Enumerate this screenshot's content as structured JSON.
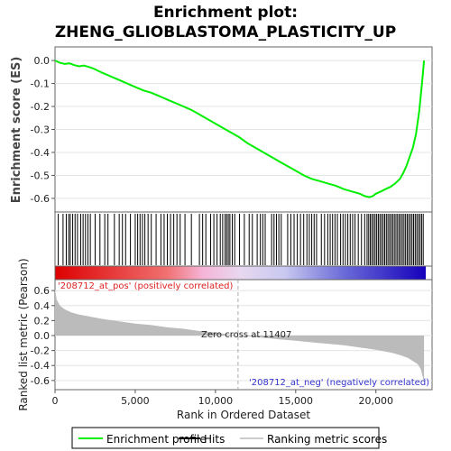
{
  "chart_data": {
    "type": "line",
    "title": "Enrichment plot:",
    "subtitle": "ZHENG_GLIOBLASTOMA_PLASTICITY_UP",
    "top_panel": {
      "ylabel": "Enrichment score (ES)",
      "ylim": [
        -0.62,
        0.02
      ],
      "yticks": [
        "0.0",
        "-0.1",
        "-0.2",
        "-0.3",
        "-0.4",
        "-0.5",
        "-0.6"
      ],
      "ytick_values": [
        0.0,
        -0.1,
        -0.2,
        -0.3,
        -0.4,
        -0.5,
        -0.6
      ],
      "series": [
        {
          "name": "Enrichment profile",
          "color": "#00ff00",
          "x": [
            0,
            300,
            600,
            900,
            1200,
            1500,
            1800,
            2100,
            2400,
            2700,
            3000,
            3500,
            4000,
            4500,
            5000,
            5500,
            6000,
            6500,
            7000,
            7500,
            8000,
            8500,
            9000,
            9500,
            10000,
            10500,
            11000,
            11500,
            12000,
            12500,
            13000,
            13500,
            14000,
            14500,
            15000,
            15500,
            16000,
            16500,
            17000,
            17500,
            18000,
            18500,
            19000,
            19300,
            19600,
            19800,
            20000,
            20300,
            20600,
            20900,
            21200,
            21500,
            21700,
            21900,
            22100,
            22300,
            22500,
            22700,
            22900,
            23000
          ],
          "y": [
            0.0,
            -0.01,
            -0.015,
            -0.012,
            -0.02,
            -0.025,
            -0.022,
            -0.028,
            -0.035,
            -0.045,
            -0.055,
            -0.07,
            -0.085,
            -0.1,
            -0.115,
            -0.13,
            -0.14,
            -0.155,
            -0.17,
            -0.185,
            -0.2,
            -0.215,
            -0.235,
            -0.255,
            -0.275,
            -0.295,
            -0.315,
            -0.335,
            -0.36,
            -0.38,
            -0.4,
            -0.42,
            -0.44,
            -0.46,
            -0.48,
            -0.5,
            -0.515,
            -0.525,
            -0.535,
            -0.545,
            -0.56,
            -0.57,
            -0.58,
            -0.59,
            -0.595,
            -0.59,
            -0.58,
            -0.57,
            -0.56,
            -0.55,
            -0.535,
            -0.515,
            -0.49,
            -0.46,
            -0.42,
            -0.38,
            -0.32,
            -0.22,
            -0.08,
            0.0
          ]
        }
      ]
    },
    "hits_panel": {
      "series_name": "Hits",
      "hits": [
        200,
        500,
        700,
        850,
        950,
        1100,
        1250,
        1400,
        1600,
        1750,
        1900,
        2050,
        2200,
        2500,
        2800,
        3100,
        3300,
        3700,
        4000,
        4200,
        4400,
        4700,
        5000,
        5150,
        5300,
        5450,
        5600,
        5800,
        6000,
        6300,
        6600,
        6800,
        7000,
        7200,
        7400,
        7600,
        7800,
        8100,
        8500,
        9000,
        9200,
        9400,
        9700,
        9900,
        10100,
        10300,
        10450,
        10600,
        10700,
        10800,
        10900,
        11050,
        11200,
        11500,
        11800,
        12100,
        12300,
        12600,
        12800,
        12950,
        13100,
        13500,
        13650,
        13800,
        13950,
        14100,
        14500,
        14700,
        14900,
        15100,
        15300,
        15500,
        15700,
        15850,
        16000,
        16150,
        16300,
        16600,
        16800,
        17000,
        17150,
        17300,
        17450,
        17600,
        17800,
        17950,
        18100,
        18250,
        18400,
        18550,
        18700,
        18900,
        19100,
        19300,
        19450,
        19550,
        19650,
        19750,
        19850,
        19950,
        20050,
        20150,
        20250,
        20350,
        20450,
        20550,
        20650,
        20750,
        20850,
        20950,
        21050,
        21150,
        21250,
        21350,
        21450,
        21550,
        21650,
        21750,
        21850,
        21950,
        22050,
        22150,
        22250,
        22350,
        22450,
        22550,
        22650,
        22750,
        22850,
        22950
      ]
    },
    "bottom_panel": {
      "ylabel": "Ranked list metric (Pearson)",
      "xlabel": "Rank in Ordered Dataset",
      "ylim": [
        -0.65,
        0.65
      ],
      "yticks": [
        "0.6",
        "0.4",
        "0.2",
        "0.0",
        "-0.2",
        "-0.4",
        "-0.6"
      ],
      "ytick_values": [
        0.6,
        0.4,
        0.2,
        0.0,
        -0.2,
        -0.4,
        -0.6
      ],
      "series_name": "Ranking metric scores",
      "color": "#bbbbbb",
      "x": [
        0,
        100,
        300,
        600,
        1000,
        1500,
        2000,
        3000,
        4000,
        5000,
        6000,
        7000,
        8000,
        9000,
        10000,
        11000,
        11407,
        12000,
        13000,
        14000,
        15000,
        16000,
        17000,
        18000,
        19000,
        20000,
        21000,
        21500,
        22000,
        22300,
        22600,
        22800,
        23000
      ],
      "y": [
        0.62,
        0.48,
        0.4,
        0.35,
        0.31,
        0.28,
        0.26,
        0.22,
        0.19,
        0.16,
        0.14,
        0.11,
        0.09,
        0.06,
        0.04,
        0.01,
        0.0,
        -0.01,
        -0.03,
        -0.05,
        -0.07,
        -0.09,
        -0.11,
        -0.13,
        -0.16,
        -0.19,
        -0.23,
        -0.26,
        -0.3,
        -0.34,
        -0.38,
        -0.45,
        -0.62
      ],
      "pos_label": "'208712_at_pos' (positively correlated)",
      "neg_label": "'208712_at_neg' (negatively correlated)",
      "zero_cross_label": "Zero cross at 11407",
      "zero_cross": 11407
    },
    "xlim": [
      0,
      23500
    ],
    "xticks": [
      "0",
      "5,000",
      "10,000",
      "15,000",
      "20,000"
    ],
    "xtick_values": [
      0,
      5000,
      10000,
      15000,
      20000
    ],
    "legend": {
      "placement": "bottom",
      "items": [
        {
          "label": "Enrichment profile",
          "color": "#00ff00"
        },
        {
          "label": "Hits",
          "color": "#000000"
        },
        {
          "label": "Ranking metric scores",
          "color": "#bbbbbb"
        }
      ]
    }
  }
}
